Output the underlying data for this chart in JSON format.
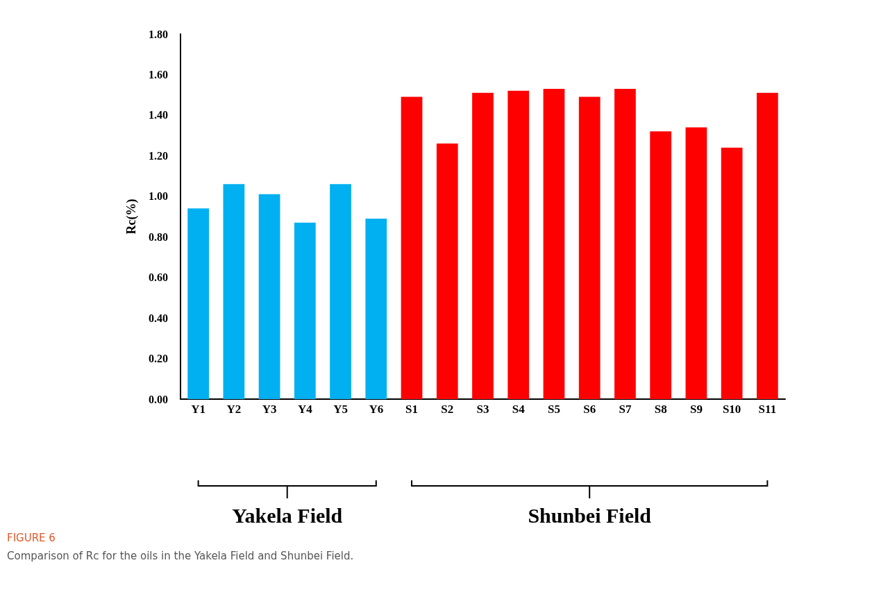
{
  "chart_data": {
    "type": "bar",
    "title": "FIGURE 6",
    "subtitle": "Comparison of Rc for the oils in the Yakela Field and Shunbei Field.",
    "ylabel": "Rc(%)",
    "categories": [
      "Y1",
      "Y2",
      "Y3",
      "Y4",
      "Y5",
      "Y6",
      "S1",
      "S2",
      "S3",
      "S4",
      "S5",
      "S6",
      "S7",
      "S8",
      "S9",
      "S10",
      "S11"
    ],
    "values": [
      0.94,
      1.06,
      1.01,
      0.87,
      1.06,
      0.89,
      1.49,
      1.26,
      1.51,
      1.52,
      1.53,
      1.49,
      1.53,
      1.32,
      1.34,
      1.24,
      1.51
    ],
    "colors": [
      "#00b0f0",
      "#00b0f0",
      "#00b0f0",
      "#00b0f0",
      "#00b0f0",
      "#00b0f0",
      "#ff0000",
      "#ff0000",
      "#ff0000",
      "#ff0000",
      "#ff0000",
      "#ff0000",
      "#ff0000",
      "#ff0000",
      "#ff0000",
      "#ff0000",
      "#ff0000"
    ],
    "annotations": [
      "Yakela Field",
      "Shunbei Field"
    ],
    "ylim": [
      0,
      1.8
    ],
    "yticks": [
      {
        "value": 0,
        "label": "0.00"
      },
      {
        "value": 0.2,
        "label": "0.20"
      },
      {
        "value": 0.4,
        "label": "0.40"
      },
      {
        "value": 0.6,
        "label": "0.60"
      },
      {
        "value": 0.8,
        "label": "0.80"
      },
      {
        "value": 1,
        "label": "1.00"
      },
      {
        "value": 1.2,
        "label": "1.20"
      },
      {
        "value": 1.4,
        "label": "1.40"
      },
      {
        "value": 1.6,
        "label": "1.60"
      },
      {
        "value": 1.8,
        "label": "1.80"
      }
    ],
    "grid": false
  }
}
